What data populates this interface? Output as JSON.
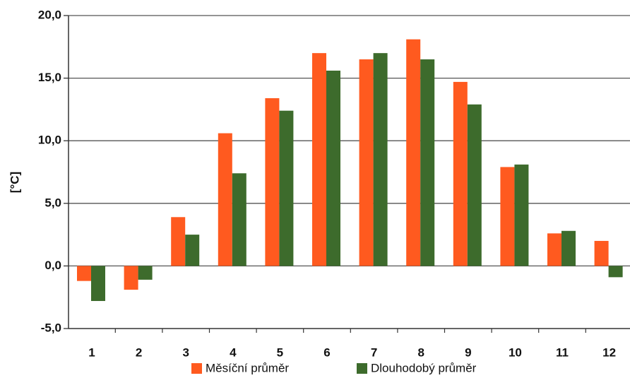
{
  "chart_data": {
    "type": "bar",
    "title": "",
    "xlabel": "",
    "ylabel": "[°C]",
    "ylim": [
      -5,
      20
    ],
    "yticks": [
      -5,
      0,
      5,
      10,
      15,
      20
    ],
    "ytick_labels": [
      "-5,0",
      "0,0",
      "5,0",
      "10,0",
      "15,0",
      "20,0"
    ],
    "grid": true,
    "legend_position": "bottom",
    "categories": [
      "1",
      "2",
      "3",
      "4",
      "5",
      "6",
      "7",
      "8",
      "9",
      "10",
      "11",
      "12"
    ],
    "series": [
      {
        "name": "Měsíční průměr",
        "color": "#ff5a1f",
        "values": [
          -1.2,
          -1.9,
          3.9,
          10.6,
          13.4,
          17.0,
          16.5,
          18.1,
          14.7,
          7.9,
          2.6,
          2.0
        ]
      },
      {
        "name": "Dlouhodobý průměr",
        "color": "#3d6b2c",
        "values": [
          -2.8,
          -1.1,
          2.5,
          7.4,
          12.4,
          15.6,
          17.0,
          16.5,
          12.9,
          8.1,
          2.8,
          -0.9
        ]
      }
    ]
  }
}
